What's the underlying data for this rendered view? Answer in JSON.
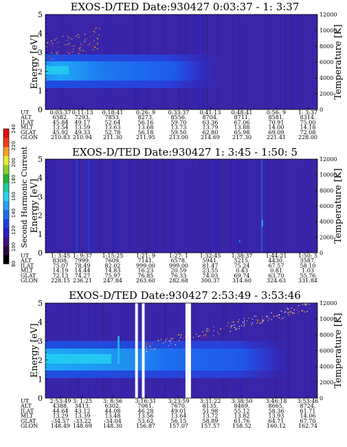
{
  "chart_data": {
    "type": "heatmap",
    "colorbar": {
      "label": "Second Harmonic Current",
      "ticks": [
        "80",
        "100",
        "120",
        "140",
        "160",
        "180",
        "200",
        "220",
        "240"
      ],
      "colors": [
        "#000000",
        "#2a0a3e",
        "#3e0f8a",
        "#2a1ec8",
        "#1e3fe0",
        "#1e6ef0",
        "#2aa0f8",
        "#2ad2f0",
        "#22c8a0",
        "#22b432",
        "#8ad22a",
        "#e8e832",
        "#f8a028",
        "#f03c1e",
        "#e01010"
      ]
    },
    "panels": [
      {
        "title": "EXOS-D/TED   Date:930427  0:03:37 - 1: 3:37",
        "ylabel": "Energy [eV]",
        "y2label": "Temperature [K]",
        "ylim": [
          0,
          5
        ],
        "yticks": [
          "0",
          "1",
          "2",
          "3",
          "4",
          "5"
        ],
        "y2lim": [
          0,
          12000
        ],
        "y2ticks": [
          "0",
          "2000",
          "4000",
          "6000",
          "8000",
          "10000",
          "12000"
        ],
        "gaps": [],
        "rows": [
          {
            "label": "UT",
            "values": [
              "0:03:37",
              "0:11:13",
              "0:18:41",
              "0:26: 9",
              "0:33:37",
              "0:41:13",
              "0:48:41",
              "0:56: 9",
              "1: 3:37"
            ]
          },
          {
            "label": "ALT",
            "values": [
              "6582.",
              "7293.",
              "7853.",
              "8273.",
              "8556.",
              "8704.",
              "8711.",
              "8581.",
              "8314."
            ]
          },
          {
            "label": "ILAT",
            "values": [
              "45.84",
              "49.17",
              "52.64",
              "56.16",
              "59.70",
              "63.36",
              "67.06",
              "70.91",
              "75.00"
            ]
          },
          {
            "label": "MLT",
            "values": [
              "13.54",
              "13.59",
              "13.63",
              "13.68",
              "13.73",
              "13.79",
              "13.88",
              "14.00",
              "14.18"
            ]
          },
          {
            "label": "GLAT",
            "values": [
              "45.92",
              "49.33",
              "52.78",
              "56.18",
              "59.50",
              "62.80",
              "65.98",
              "69.09",
              "72.08"
            ]
          },
          {
            "label": "GLON",
            "values": [
              "210.83",
              "210.94",
              "211.30",
              "211.95",
              "213.00",
              "214.69",
              "217.30",
              "221.41",
              "228.00"
            ]
          }
        ]
      },
      {
        "title": "EXOS-D/TED   Date:930427  1: 3:45 - 1:50: 5",
        "ylabel": "Energy [eV]",
        "y2label": "Temperature [K]",
        "ylim": [
          0,
          5
        ],
        "yticks": [
          "0",
          "1",
          "2",
          "3",
          "4",
          "5"
        ],
        "y2lim": [
          0,
          12000
        ],
        "y2ticks": [
          "0",
          "2000",
          "4000",
          "6000",
          "8000",
          "10000",
          "12000"
        ],
        "gaps": [],
        "rows": [
          {
            "label": "UT",
            "values": [
              "1: 3:45",
              "1: 9:37",
              "1:15:25",
              "1:21: 9",
              "1:27: 1",
              "1:32:45",
              "1:38:37",
              "1:44:21",
              "1:50: 5"
            ]
          },
          {
            "label": "ALT",
            "values": [
              "8308.",
              "7999.",
              "7609.",
              "7141.",
              "6578.",
              "5941.",
              "5215.",
              "4430.",
              "3587."
            ]
          },
          {
            "label": "ILAT",
            "values": [
              "75.07",
              "78.49",
              "82.02",
              "999.00",
              "999.00",
              "81.47",
              "75.24",
              "67.57",
              "58.10"
            ]
          },
          {
            "label": "MLT",
            "values": [
              "14.19",
              "14.44",
              "14.83",
              "16.23",
              "20.59",
              "23.55",
              "0.43",
              "0.81",
              "1.03"
            ]
          },
          {
            "label": "GLAT",
            "values": [
              "72.13",
              "74.27",
              "75.97",
              "76.85",
              "76.33",
              "74.03",
              "69.74",
              "63.70",
              "55.76"
            ]
          },
          {
            "label": "GLON",
            "values": [
              "228.15",
              "236.21",
              "247.84",
              "263.60",
              "282.68",
              "300.37",
              "314.60",
              "324.63",
              "331.84"
            ]
          }
        ]
      },
      {
        "title": "EXOS-D/TED   Date:930427  2:53:49 - 3:53:46",
        "ylabel": "Energy [eV]",
        "y2label": "Temperature [K]",
        "ylim": [
          0,
          5
        ],
        "yticks": [
          "0",
          "1",
          "2",
          "3",
          "4",
          "5"
        ],
        "y2lim": [
          0,
          12000
        ],
        "y2ticks": [
          "0",
          "2000",
          "4000",
          "6000",
          "8000",
          "10000",
          "12000"
        ],
        "gaps": [
          [
            0.33,
            0.365
          ],
          [
            0.515,
            0.535
          ]
        ],
        "rows": [
          {
            "label": "UT",
            "values": [
              "2:53:49",
              "3: 1:25",
              "3: 8:56",
              "3:16:31",
              "3:23:59",
              "3:31:22",
              "3:38:50",
              "3:46:18",
              "3:53:46"
            ]
          },
          {
            "label": "ALT",
            "values": [
              "4388.",
              "3413.",
              "6302.",
              "7061.",
              "7670.",
              "8135.",
              "8469.",
              "8665.",
              "8724."
            ]
          },
          {
            "label": "ILAT",
            "values": [
              "44.64",
              "43.12",
              "44.08",
              "46.28",
              "49.01",
              "51.98",
              "55.12",
              "58.36",
              "61.71"
            ]
          },
          {
            "label": "MLT",
            "values": [
              "13.29",
              "13.39",
              "13.48",
              "13.56",
              "13.64",
              "13.72",
              "13.82",
              "13.93",
              "14.06"
            ]
          },
          {
            "label": "GLAT",
            "values": [
              "-34.57",
              "-33.22",
              "-34.04",
              "53.62",
              "56.15",
              "58.89",
              "61.76",
              "64.71",
              "67.70"
            ]
          },
          {
            "label": "GLON",
            "values": [
              "148.49",
              "148.69",
              "148.30",
              "156.87",
              "157.07",
              "157.57",
              "158.52",
              "160.12",
              "162.74"
            ]
          }
        ]
      }
    ]
  }
}
